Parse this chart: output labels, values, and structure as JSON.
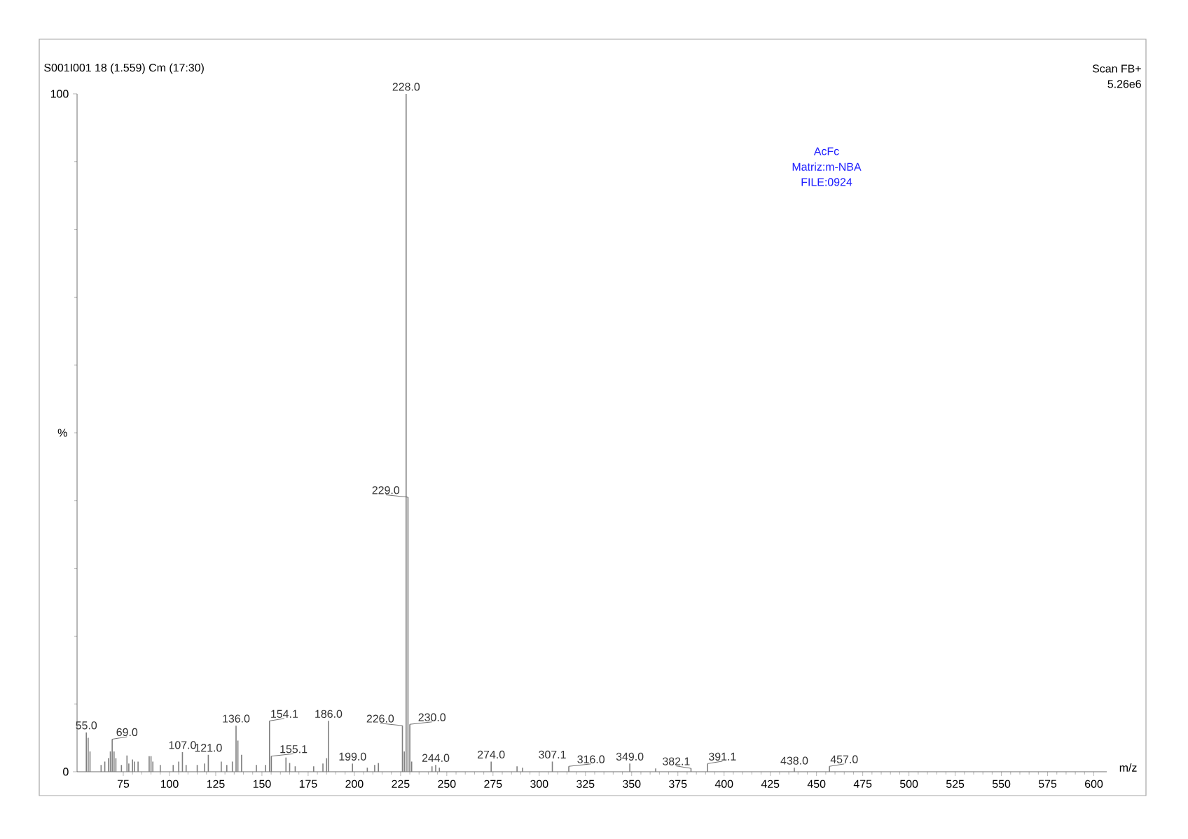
{
  "chart_data": {
    "type": "bar",
    "title": "S001I001 18 (1.559) Cm (17:30)",
    "xlabel": "m/z",
    "ylabel": "%",
    "x": [
      55.0,
      56,
      57,
      63,
      65,
      67,
      68,
      69.0,
      70,
      71,
      74,
      77,
      78,
      80,
      81,
      83,
      89,
      90,
      91,
      95,
      102,
      105,
      107.0,
      109,
      115,
      119,
      121.0,
      128,
      131,
      134,
      136.0,
      137,
      139,
      147,
      152,
      154.1,
      155.1,
      163,
      165,
      168,
      178,
      183,
      185,
      186.0,
      199.0,
      207,
      211,
      213,
      226.0,
      227,
      228.0,
      229.0,
      230.0,
      231,
      242,
      244.0,
      246,
      274.0,
      288,
      291,
      307.1,
      316.0,
      349.0,
      363,
      382.1,
      391.1,
      438.0,
      457.0
    ],
    "values": [
      5.8,
      5.0,
      3.0,
      1.0,
      1.5,
      2.0,
      3.0,
      4.8,
      3.0,
      2.0,
      1.0,
      2.4,
      1.2,
      1.8,
      1.5,
      1.5,
      2.3,
      2.3,
      1.5,
      1.0,
      1.0,
      1.5,
      2.9,
      1.0,
      1.0,
      1.2,
      2.5,
      1.5,
      1.0,
      1.5,
      6.8,
      4.6,
      2.5,
      1.0,
      1.0,
      7.5,
      2.3,
      2.1,
      1.3,
      0.8,
      0.8,
      1.2,
      2.0,
      7.5,
      1.2,
      0.6,
      1.0,
      1.3,
      6.8,
      3.0,
      100,
      40.5,
      7.0,
      1.5,
      0.8,
      1.0,
      0.6,
      1.5,
      0.8,
      0.6,
      1.5,
      0.8,
      1.2,
      0.5,
      0.5,
      1.2,
      0.6,
      0.8
    ],
    "color": "#7f7f7f",
    "xlim": [
      50,
      607
    ],
    "ylim": [
      0,
      100
    ],
    "xticks": [
      75,
      100,
      125,
      150,
      175,
      200,
      225,
      250,
      275,
      300,
      325,
      350,
      375,
      400,
      425,
      450,
      475,
      500,
      525,
      550,
      575,
      600
    ],
    "yticks": [
      0,
      100
    ],
    "annotations": [
      "Scan FB+",
      "5.26e6",
      "AcFc",
      "Matriz:m-NBA",
      "FILE:0924",
      {
        "text": "55.0",
        "x": 55.0,
        "y": 5.8
      },
      {
        "text": "69.0",
        "x": 69.0,
        "y": 4.8
      },
      {
        "text": "107.0",
        "x": 107.0,
        "y": 2.9
      },
      {
        "text": "121.0",
        "x": 121.0,
        "y": 2.5
      },
      {
        "text": "136.0",
        "x": 136.0,
        "y": 6.8
      },
      {
        "text": "154.1",
        "x": 154.1,
        "y": 7.5
      },
      {
        "text": "155.1",
        "x": 155.1,
        "y": 2.3
      },
      {
        "text": "186.0",
        "x": 186.0,
        "y": 7.5
      },
      {
        "text": "199.0",
        "x": 199.0,
        "y": 1.2
      },
      {
        "text": "226.0",
        "x": 226.0,
        "y": 6.8
      },
      {
        "text": "228.0",
        "x": 228.0,
        "y": 100
      },
      {
        "text": "229.0",
        "x": 229.0,
        "y": 40.5
      },
      {
        "text": "230.0",
        "x": 230.0,
        "y": 7.0
      },
      {
        "text": "244.0",
        "x": 244.0,
        "y": 1.0
      },
      {
        "text": "274.0",
        "x": 274.0,
        "y": 1.5
      },
      {
        "text": "307.1",
        "x": 307.1,
        "y": 1.5
      },
      {
        "text": "316.0",
        "x": 316.0,
        "y": 0.8
      },
      {
        "text": "349.0",
        "x": 349.0,
        "y": 1.2
      },
      {
        "text": "382.1",
        "x": 382.1,
        "y": 0.5
      },
      {
        "text": "391.1",
        "x": 391.1,
        "y": 1.2
      },
      {
        "text": "438.0",
        "x": 438.0,
        "y": 0.6
      },
      {
        "text": "457.0",
        "x": 457.0,
        "y": 0.8
      }
    ]
  }
}
